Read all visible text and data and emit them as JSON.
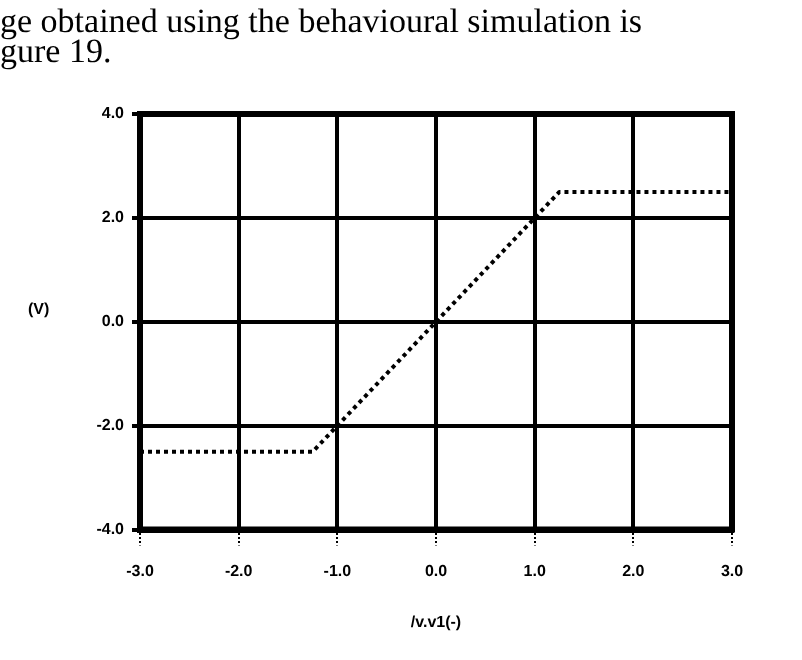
{
  "chart_data": {
    "type": "line",
    "xlabel": "/v.v1(-)",
    "ylabel": "(V)",
    "annotations": [
      "ge obtained using the behavioural simulation is",
      "gure 19."
    ],
    "x": [
      -3,
      -1.25,
      0,
      1.25,
      3
    ],
    "series": [
      {
        "color": "#000000",
        "values": [
          -2.5,
          -2.5,
          0,
          2.5,
          2.5
        ]
      }
    ],
    "xlim": [
      -3,
      3
    ],
    "xticks": [
      {
        "value": -3,
        "label": "-3.0"
      },
      {
        "value": -2,
        "label": "-2.0"
      },
      {
        "value": -1,
        "label": "-1.0"
      },
      {
        "value": 0,
        "label": "0.0"
      },
      {
        "value": 1,
        "label": "1.0"
      },
      {
        "value": 2,
        "label": "2.0"
      },
      {
        "value": 3,
        "label": "3.0"
      }
    ],
    "ylim": [
      -4,
      4
    ],
    "yticks": [
      {
        "value": -4,
        "label": "-4.0"
      },
      {
        "value": -2,
        "label": "-2.0"
      },
      {
        "value": 0,
        "label": "0.0"
      },
      {
        "value": 2,
        "label": "2.0"
      },
      {
        "value": 4,
        "label": "4.0"
      }
    ],
    "grid": true,
    "legend": false,
    "marker": "none",
    "line_style": "dotted"
  }
}
